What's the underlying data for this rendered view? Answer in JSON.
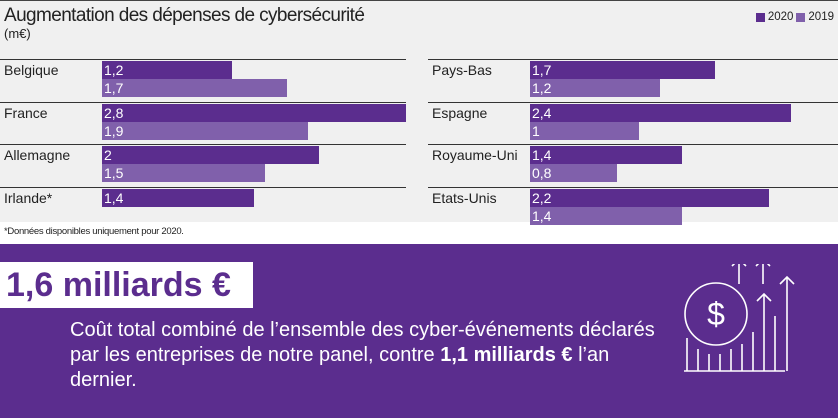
{
  "chart_data": {
    "type": "bar",
    "title": "Augmentation des dépenses de cybersécurité",
    "ylabel": "(m€)",
    "legend": [
      {
        "name": "2020",
        "color": "#5b2d8e"
      },
      {
        "name": "2019",
        "color": "#8060ab"
      }
    ],
    "legend_position": "top-right",
    "groups": [
      [
        {
          "country": "Belgique",
          "v2020": 1.2,
          "v2019": 1.7,
          "l2020": "1,2",
          "l2019": "1,7"
        },
        {
          "country": "France",
          "v2020": 2.8,
          "v2019": 1.9,
          "l2020": "2,8",
          "l2019": "1,9"
        },
        {
          "country": "Allemagne",
          "v2020": 2,
          "v2019": 1.5,
          "l2020": "2",
          "l2019": "1,5"
        },
        {
          "country": "Irlande*",
          "v2020": 1.4,
          "v2019": null,
          "l2020": "1,4",
          "l2019": null
        }
      ],
      [
        {
          "country": "Pays-Bas",
          "v2020": 1.7,
          "v2019": 1.2,
          "l2020": "1,7",
          "l2019": "1,2"
        },
        {
          "country": "Espagne",
          "v2020": 2.4,
          "v2019": 1,
          "l2020": "2,4",
          "l2019": "1"
        },
        {
          "country": "Royaume-Uni",
          "v2020": 1.4,
          "v2019": 0.8,
          "l2020": "1,4",
          "l2019": "0,8"
        },
        {
          "country": "Etats-Unis",
          "v2020": 2.2,
          "v2019": 1.4,
          "l2020": "2,2",
          "l2019": "1,4"
        }
      ]
    ],
    "xlim": [
      0,
      2.8
    ],
    "note": "*Données disponibles uniquement pour 2020."
  },
  "highlight": {
    "big": "1,6 milliards €",
    "text1": "Coût total combiné de l’ensemble des cyber-événements déclarés par les entreprises de notre panel, contre ",
    "bold": "1,1 milliards €",
    "text2": " l’an dernier.",
    "icon": "dollar-growth-icon"
  }
}
